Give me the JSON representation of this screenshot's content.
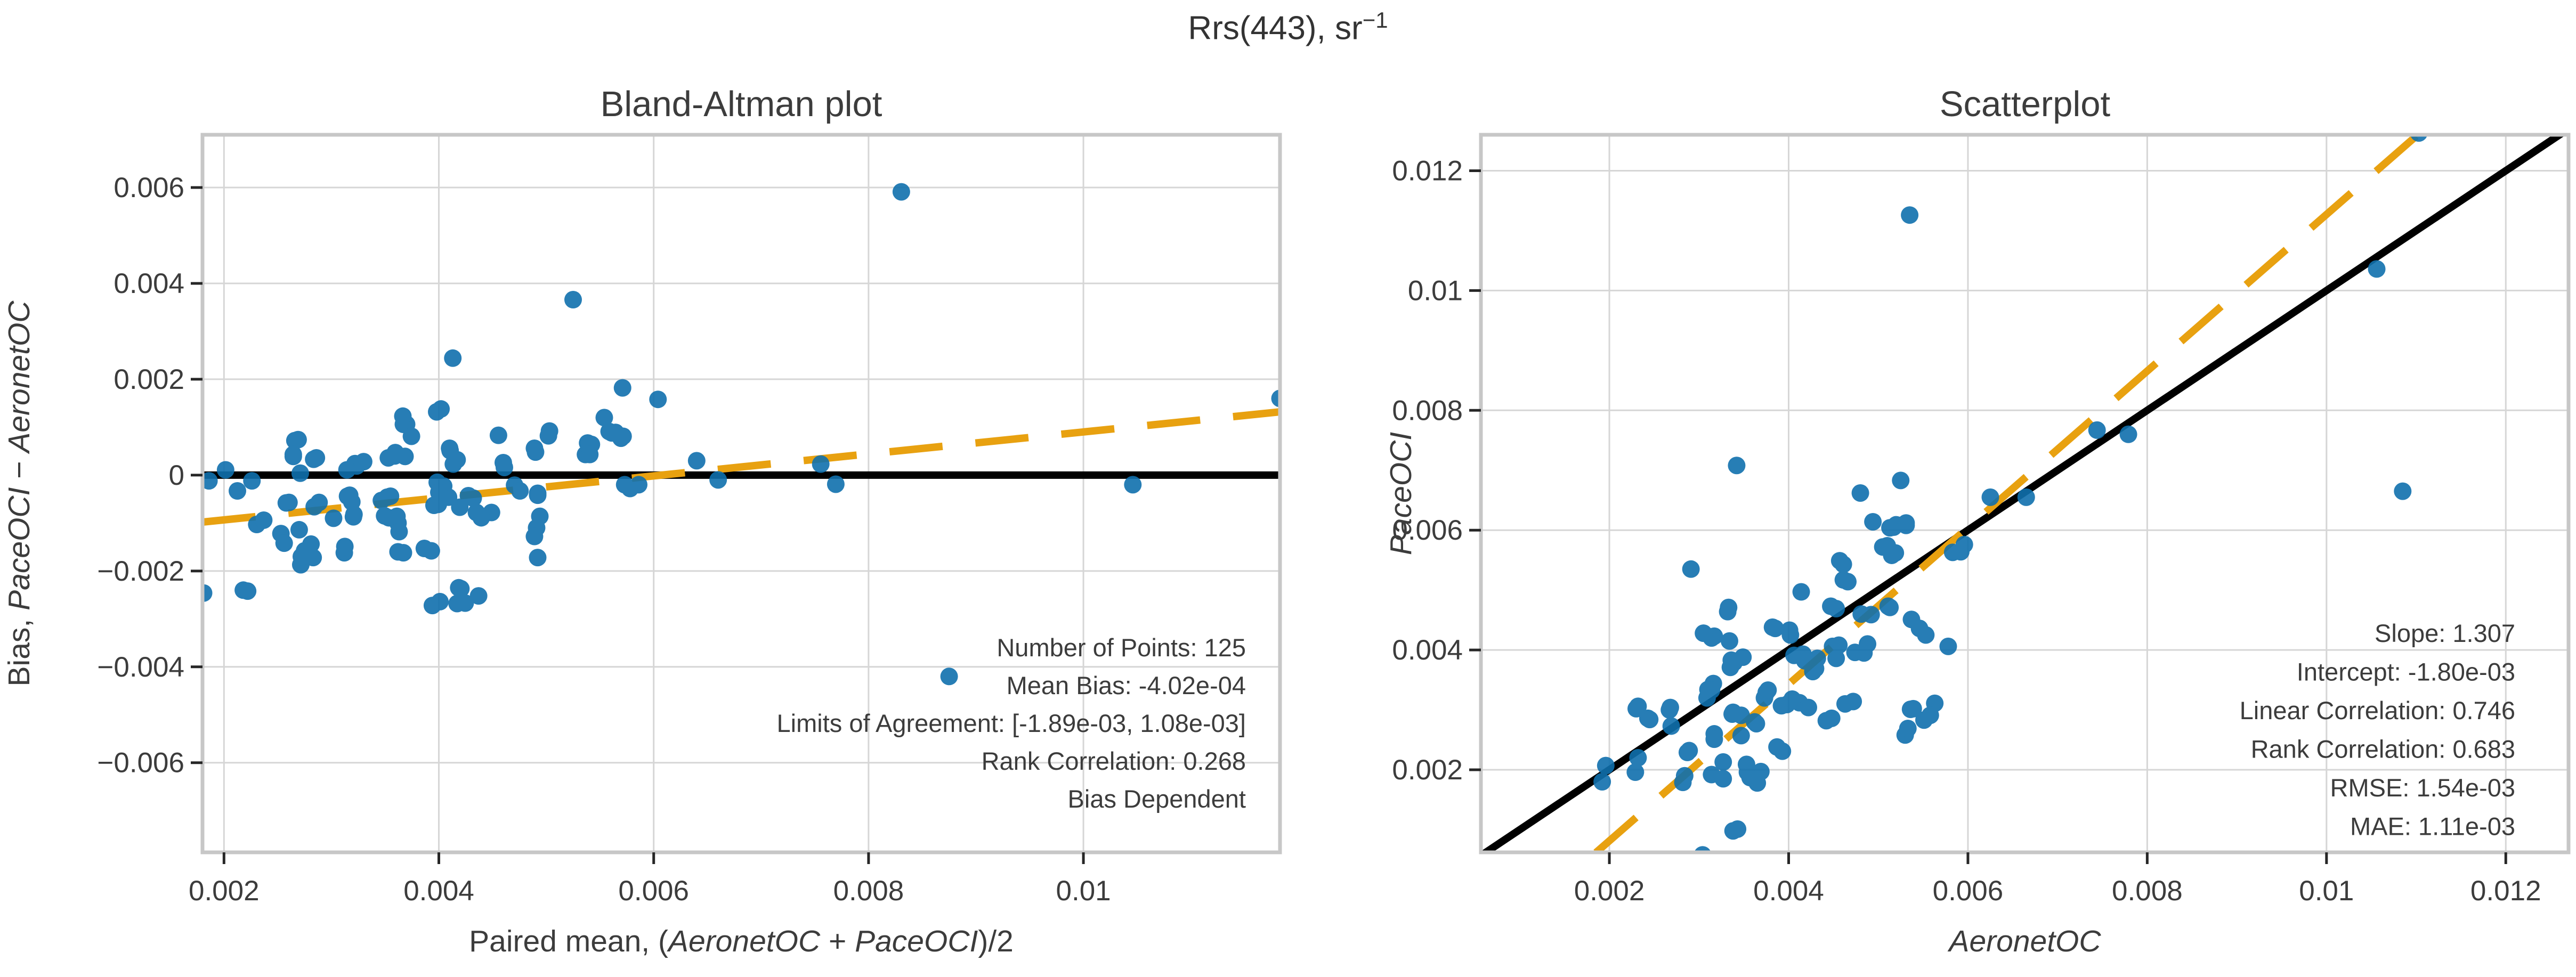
{
  "main_title": {
    "text": "Rrs(443), sr",
    "superscript": "−1"
  },
  "colors": {
    "point": "#1070ad",
    "accent_orange": "#e8a110",
    "line_black": "#000000",
    "grid": "#d6d6d6",
    "spine": "#c7c7c7",
    "tick": "#262626",
    "text": "#3c3c3c",
    "title": "#333333",
    "background": "#ffffff"
  },
  "observations_units": "sr^-1",
  "observations": [
    [
      0.00196,
      0.00207
    ],
    [
      0.00192,
      0.0018
    ],
    [
      0.00229,
      0.00196
    ],
    [
      0.00232,
      0.0022
    ],
    [
      0.00282,
      0.00179
    ],
    [
      0.00232,
      0.00306
    ],
    [
      0.00245,
      0.00284
    ],
    [
      0.00269,
      0.00273
    ],
    [
      0.00289,
      0.00232
    ],
    [
      0.0023,
      0.00302
    ],
    [
      0.00243,
      0.00286
    ],
    [
      0.00267,
      0.003
    ],
    [
      0.00287,
      0.00229
    ],
    [
      0.00284,
      0.0019
    ],
    [
      0.00304,
      0.00058
    ],
    [
      0.00314,
      0.00192
    ],
    [
      0.00327,
      0.00185
    ],
    [
      0.00354,
      0.00196
    ],
    [
      0.00369,
      0.00197
    ],
    [
      0.00365,
      0.00178
    ],
    [
      0.00338,
      0.00098
    ],
    [
      0.00327,
      0.00213
    ],
    [
      0.00353,
      0.00209
    ],
    [
      0.00357,
      0.00187
    ],
    [
      0.00343,
      0.00101
    ],
    [
      0.00268,
      0.00304
    ],
    [
      0.00317,
      0.0026
    ],
    [
      0.00347,
      0.00257
    ],
    [
      0.00393,
      0.00231
    ],
    [
      0.00338,
      0.00296
    ],
    [
      0.00364,
      0.00277
    ],
    [
      0.0031,
      0.00334
    ],
    [
      0.00316,
      0.00344
    ],
    [
      0.00335,
      0.00371
    ],
    [
      0.00336,
      0.00383
    ],
    [
      0.00349,
      0.00388
    ],
    [
      0.00375,
      0.00329
    ],
    [
      0.00398,
      0.00309
    ],
    [
      0.00412,
      0.00312
    ],
    [
      0.00448,
      0.00286
    ],
    [
      0.00317,
      0.00423
    ],
    [
      0.00333,
      0.00471
    ],
    [
      0.00382,
      0.00438
    ],
    [
      0.00401,
      0.00433
    ],
    [
      0.00416,
      0.00393
    ],
    [
      0.0043,
      0.00369
    ],
    [
      0.00432,
      0.00386
    ],
    [
      0.00453,
      0.00386
    ],
    [
      0.00456,
      0.00408
    ],
    [
      0.00474,
      0.00396
    ],
    [
      0.00463,
      0.0031
    ],
    [
      0.0053,
      0.00258
    ],
    [
      0.00539,
      0.00302
    ],
    [
      0.00551,
      0.00283
    ],
    [
      0.00332,
      0.00464
    ],
    [
      0.00314,
      0.0042
    ],
    [
      0.00334,
      0.00415
    ],
    [
      0.00385,
      0.00436
    ],
    [
      0.00402,
      0.00425
    ],
    [
      0.00406,
      0.00391
    ],
    [
      0.00418,
      0.00382
    ],
    [
      0.00427,
      0.00364
    ],
    [
      0.00339,
      0.00379
    ],
    [
      0.00347,
      0.00291
    ],
    [
      0.00314,
      0.00333
    ],
    [
      0.00309,
      0.0032
    ],
    [
      0.00317,
      0.00251
    ],
    [
      0.00337,
      0.00293
    ],
    [
      0.00362,
      0.0028
    ],
    [
      0.00373,
      0.0032
    ],
    [
      0.00377,
      0.00333
    ],
    [
      0.00404,
      0.00318
    ],
    [
      0.00392,
      0.00307
    ],
    [
      0.00422,
      0.00304
    ],
    [
      0.00387,
      0.00238
    ],
    [
      0.00291,
      0.00535
    ],
    [
      0.00305,
      0.00428
    ],
    [
      0.00447,
      0.00473
    ],
    [
      0.00457,
      0.00549
    ],
    [
      0.00461,
      0.00517
    ],
    [
      0.00449,
      0.00406
    ],
    [
      0.00481,
      0.0046
    ],
    [
      0.00488,
      0.0041
    ],
    [
      0.00484,
      0.00395
    ],
    [
      0.00472,
      0.00314
    ],
    [
      0.00442,
      0.00282
    ],
    [
      0.00513,
      0.00604
    ],
    [
      0.0052,
      0.00609
    ],
    [
      0.00531,
      0.00612
    ],
    [
      0.00505,
      0.00572
    ],
    [
      0.00515,
      0.00558
    ],
    [
      0.00511,
      0.00473
    ],
    [
      0.00537,
      0.00451
    ],
    [
      0.00546,
      0.00436
    ],
    [
      0.00553,
      0.00425
    ],
    [
      0.00563,
      0.00311
    ],
    [
      0.00536,
      0.00301
    ],
    [
      0.00533,
      0.00269
    ],
    [
      0.00558,
      0.00291
    ],
    [
      0.00583,
      0.00563
    ],
    [
      0.00578,
      0.00406
    ],
    [
      0.00342,
      0.00708
    ],
    [
      0.00494,
      0.00614
    ],
    [
      0.0048,
      0.00662
    ],
    [
      0.00525,
      0.00683
    ],
    [
      0.00414,
      0.00497
    ],
    [
      0.00461,
      0.00543
    ],
    [
      0.00466,
      0.00514
    ],
    [
      0.0051,
      0.00574
    ],
    [
      0.00519,
      0.00562
    ],
    [
      0.00517,
      0.00605
    ],
    [
      0.00531,
      0.00608
    ],
    [
      0.00453,
      0.00469
    ],
    [
      0.00492,
      0.00459
    ],
    [
      0.00513,
      0.00471
    ],
    [
      0.00592,
      0.00564
    ],
    [
      0.00596,
      0.00576
    ],
    [
      0.00535,
      0.01126
    ],
    [
      0.01103,
      0.01263
    ],
    [
      0.01056,
      0.01036
    ],
    [
      0.01085,
      0.00665
    ],
    [
      0.00744,
      0.00767
    ],
    [
      0.00779,
      0.0076
    ],
    [
      0.00625,
      0.00655
    ],
    [
      0.00665,
      0.00655
    ]
  ],
  "chart_data": [
    {
      "type": "scatter",
      "name": "bland-altman-plot",
      "title": "Bland-Altman plot",
      "points_source": "observations",
      "transform": "bland_altman",
      "xlabel_segments": [
        {
          "text": "Paired mean, (",
          "italic": false
        },
        {
          "text": "AeronetOC",
          "italic": true
        },
        {
          "text": " + ",
          "italic": false
        },
        {
          "text": "PaceOCI",
          "italic": true
        },
        {
          "text": ")/2",
          "italic": false
        }
      ],
      "ylabel_segments": [
        {
          "text": "Bias, ",
          "italic": false
        },
        {
          "text": "PaceOCI",
          "italic": true
        },
        {
          "text": " − ",
          "italic": false
        },
        {
          "text": "AeronetOC",
          "italic": true
        }
      ],
      "x_ticks": [
        0.002,
        0.004,
        0.006,
        0.008,
        0.01
      ],
      "y_ticks": [
        0.006,
        0.004,
        0.002,
        0,
        -0.002,
        -0.004,
        -0.006
      ],
      "xlim": [
        0.0018,
        0.01183
      ],
      "ylim": [
        -0.00787,
        0.0071
      ],
      "grid": true,
      "lines": [
        {
          "name": "zero-bias-line",
          "style": "solid",
          "color": "#000000",
          "from": [
            0.0016,
            0
          ],
          "to": [
            0.0121,
            0
          ]
        },
        {
          "name": "bias-trend-line",
          "style": "dashed",
          "color": "#e8a110",
          "from": [
            0.0018,
            -0.00098
          ],
          "to": [
            0.01183,
            0.00132
          ]
        }
      ],
      "stats_lines": [
        "Number of Points: 125",
        "Mean Bias: -4.02e-04",
        "Limits of Agreement: [-1.89e-03, 1.08e-03]",
        "Rank Correlation: 0.268",
        "Bias Dependent"
      ]
    },
    {
      "type": "scatter",
      "name": "scatterplot",
      "title": "Scatterplot",
      "points_source": "observations",
      "transform": "identity",
      "xlabel_segments": [
        {
          "text": "AeronetOC",
          "italic": true
        }
      ],
      "ylabel_segments": [
        {
          "text": "PaceOCI",
          "italic": true
        }
      ],
      "x_ticks": [
        0.002,
        0.004,
        0.006,
        0.008,
        0.01,
        0.012
      ],
      "y_ticks": [
        0.002,
        0.004,
        0.006,
        0.008,
        0.01,
        0.012
      ],
      "xlim": [
        0.000567,
        0.0127
      ],
      "ylim": [
        0.000622,
        0.0126
      ],
      "grid": true,
      "lines": [
        {
          "name": "identity-line",
          "style": "solid",
          "color": "#000000",
          "from": [
            0.0004,
            0.0004
          ],
          "to": [
            0.0131,
            0.0131
          ]
        },
        {
          "name": "regression-line",
          "style": "dashed",
          "color": "#e8a110",
          "from": [
            0.0004,
            -0.0012772
          ],
          "to": [
            0.0131,
            0.0153217
          ]
        }
      ],
      "regression": {
        "slope": 1.307,
        "intercept": -0.0018
      },
      "stats_lines": [
        "Slope: 1.307",
        "Intercept: -1.80e-03",
        "Linear Correlation: 0.746",
        "Rank Correlation: 0.683",
        "RMSE: 1.54e-03",
        "MAE: 1.11e-03"
      ]
    }
  ]
}
